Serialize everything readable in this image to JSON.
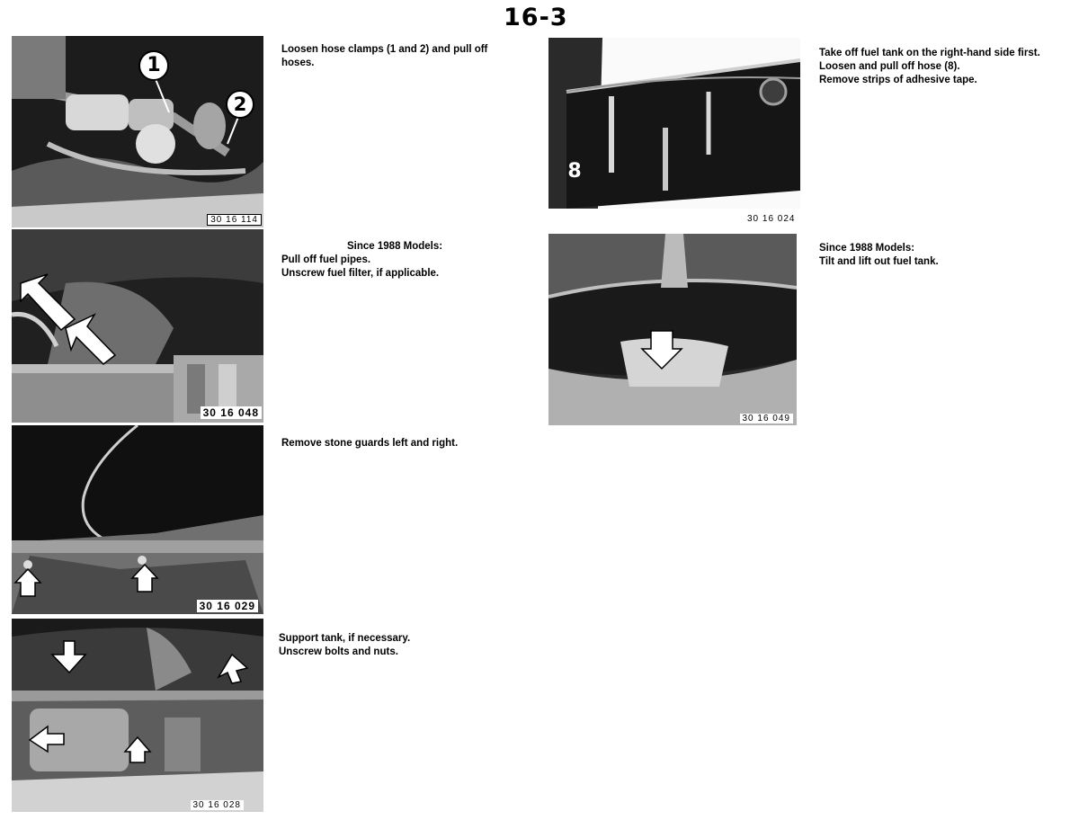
{
  "page": {
    "number": "16-3"
  },
  "figures": {
    "fig1": {
      "code": "30 16 114",
      "callouts": [
        "1",
        "2"
      ],
      "caption": [
        "Loosen hose clamps (1 and 2) and pull off",
        "hoses."
      ]
    },
    "fig2": {
      "code": "30 16 048",
      "caption_heading": "Since 1988 Models:",
      "caption": [
        "Pull off fuel pipes.",
        "Unscrew fuel filter, if applicable."
      ]
    },
    "fig3": {
      "code": "30 16 029",
      "caption": [
        "Remove stone guards left and right."
      ]
    },
    "fig4": {
      "code": "30 16 028",
      "caption": [
        "Support tank, if necessary.",
        "Unscrew bolts and nuts."
      ]
    },
    "fig5": {
      "code": "30 16 024",
      "callouts": [
        "8"
      ],
      "caption": [
        "Take off fuel tank on the right-hand side first.",
        "Loosen and pull off hose (8).",
        "Remove strips of adhesive tape."
      ]
    },
    "fig6": {
      "code": "30 16 049",
      "caption": [
        "Since 1988 Models:",
        "Tilt and lift out fuel tank."
      ]
    }
  }
}
